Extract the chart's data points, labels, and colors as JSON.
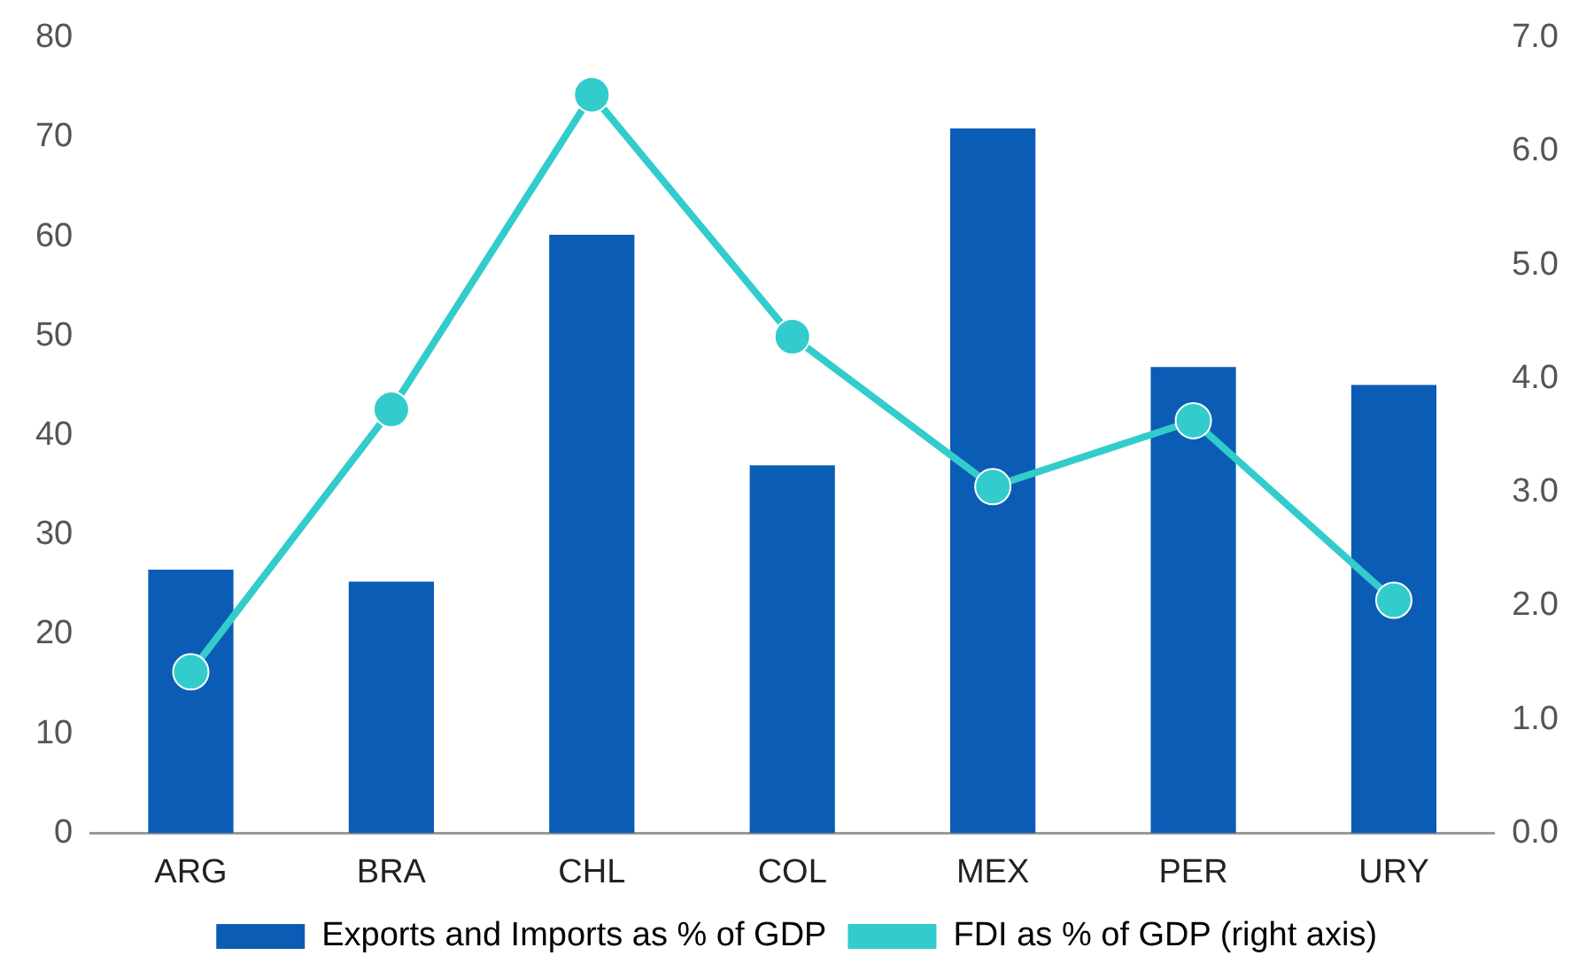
{
  "chart_data": {
    "type": "bar",
    "categories": [
      "ARG",
      "BRA",
      "CHL",
      "COL",
      "MEX",
      "PER",
      "URY"
    ],
    "series": [
      {
        "name": "Exports and Imports as % of GDP",
        "color": "#0b5cb5",
        "values": [
          26.5,
          25.3,
          60.2,
          37.0,
          70.9,
          46.9,
          45.1
        ]
      },
      {
        "name": "FDI as % of GDP (right axis)",
        "type": "line",
        "axis": "y2",
        "color": "#33cccc",
        "values": [
          1.42,
          3.73,
          6.5,
          4.37,
          3.05,
          3.63,
          2.05
        ]
      }
    ],
    "ylim": [
      0,
      80
    ],
    "yticks": [
      0,
      10,
      20,
      30,
      40,
      50,
      60,
      70,
      80
    ],
    "y2lim": [
      0,
      7
    ],
    "y2ticks": [
      {
        "value": 0,
        "label": "0.0"
      },
      {
        "value": 1,
        "label": "1.0"
      },
      {
        "value": 2,
        "label": "2.0"
      },
      {
        "value": 3,
        "label": "3.0"
      },
      {
        "value": 4,
        "label": "4.0"
      },
      {
        "value": 5,
        "label": "5.0"
      },
      {
        "value": 6,
        "label": "6.0"
      },
      {
        "value": 7,
        "label": "7.0"
      }
    ],
    "grid": false,
    "legend": "bottom",
    "marker": "circle"
  }
}
